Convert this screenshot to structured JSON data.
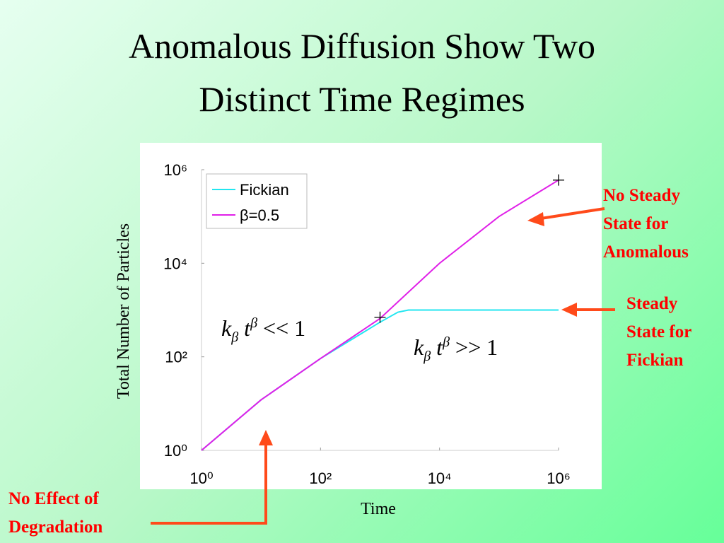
{
  "title_lines": [
    "Anomalous Diffusion Show Two",
    "Distinct Time Regimes"
  ],
  "chart_data": {
    "type": "line",
    "xlabel": "Time",
    "ylabel": "Total Number of Particles",
    "xscale": "log",
    "yscale": "log",
    "xlim": [
      1,
      1000000
    ],
    "ylim": [
      1,
      1000000
    ],
    "xticks": [
      {
        "value": 1,
        "label": "10⁰"
      },
      {
        "value": 100,
        "label": "10²"
      },
      {
        "value": 10000,
        "label": "10⁴"
      },
      {
        "value": 1000000,
        "label": "10⁶"
      }
    ],
    "yticks": [
      {
        "value": 1,
        "label": "10⁰"
      },
      {
        "value": 100,
        "label": "10²"
      },
      {
        "value": 10000,
        "label": "10⁴"
      },
      {
        "value": 1000000,
        "label": "10⁶"
      }
    ],
    "legend": "upper left",
    "series": [
      {
        "name": "Fickian",
        "color": "#22e6f0",
        "x": [
          1,
          10,
          100,
          1000,
          2000,
          3000,
          10000,
          100000,
          1000000
        ],
        "values": [
          1,
          12,
          92,
          550,
          900,
          1000,
          1000,
          1000,
          1000
        ]
      },
      {
        "name": "β=0.5",
        "color": "#e020e8",
        "x": [
          1,
          10,
          100,
          1000,
          10000,
          100000,
          1000000
        ],
        "values": [
          1,
          12,
          92,
          660,
          10000,
          100000,
          600000
        ]
      }
    ],
    "markers": {
      "x": [
        1000,
        1000000
      ],
      "values": [
        700,
        600000
      ]
    },
    "annotations": [
      {
        "k": "k",
        "sub": "β",
        "t": " t",
        "sup": "β",
        "rest": " << 1"
      },
      {
        "k": "k",
        "sub": "β",
        "t": " t",
        "sup": "β",
        "rest": " >> 1"
      }
    ]
  },
  "callouts": [
    {
      "lines": [
        "No Steady",
        "State for",
        "Anomalous"
      ]
    },
    {
      "lines": [
        "Steady",
        "State for",
        "Fickian"
      ]
    },
    {
      "lines": [
        "No Effect of",
        "Degradation"
      ]
    }
  ]
}
